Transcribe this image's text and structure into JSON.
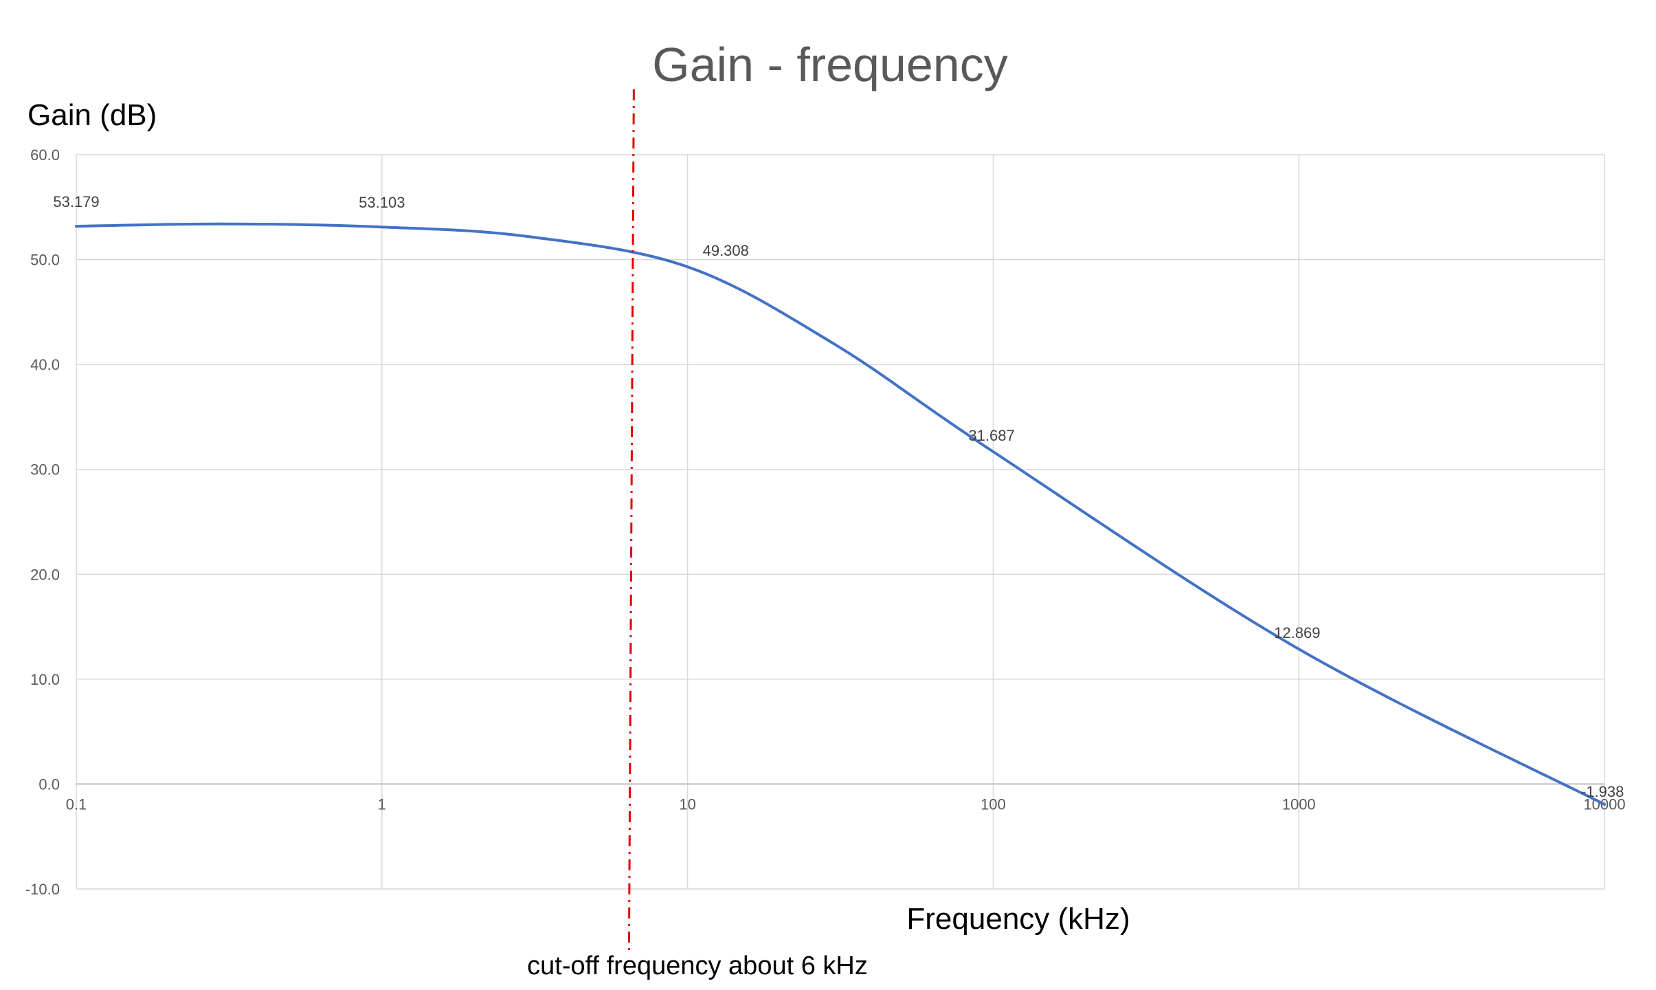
{
  "chart_data": {
    "type": "line",
    "title": "Gain - frequency",
    "xlabel": "Frequency (kHz)",
    "ylabel": "Gain (dB)",
    "x_scale": "log",
    "xlim": [
      0.1,
      10000
    ],
    "ylim": [
      -10,
      60
    ],
    "x_ticks": [
      "0.1",
      "1",
      "10",
      "100",
      "1000",
      "10000"
    ],
    "y_ticks": [
      "60.0",
      "50.0",
      "40.0",
      "30.0",
      "20.0",
      "10.0",
      "0.0",
      "-10.0"
    ],
    "grid": true,
    "legend": "none",
    "series": [
      {
        "color": "#4472C4",
        "points": [
          {
            "x": 0.1,
            "y": 53.179
          },
          {
            "x": 0.3,
            "y": 53.4
          },
          {
            "x": 1,
            "y": 53.103
          },
          {
            "x": 3,
            "y": 52.2
          },
          {
            "x": 10,
            "y": 49.308
          },
          {
            "x": 30,
            "y": 42.0
          },
          {
            "x": 100,
            "y": 31.687
          },
          {
            "x": 1000,
            "y": 12.869
          },
          {
            "x": 10000,
            "y": -1.938
          }
        ]
      }
    ],
    "data_labels": [
      {
        "x": 0.1,
        "y": 53.179,
        "text": "53.179"
      },
      {
        "x": 1,
        "y": 53.103,
        "text": "53.103"
      },
      {
        "x": 10,
        "y": 49.308,
        "text": "49.308"
      },
      {
        "x": 100,
        "y": 31.687,
        "text": "31.687"
      },
      {
        "x": 1000,
        "y": 12.869,
        "text": "12.869"
      },
      {
        "x": 10000,
        "y": -1.938,
        "text": "-1.938"
      }
    ],
    "annotation": {
      "text": "cut-off frequency  about 6 kHz",
      "x": 6.5,
      "color": "#E00000",
      "style": "dash-dot"
    }
  }
}
